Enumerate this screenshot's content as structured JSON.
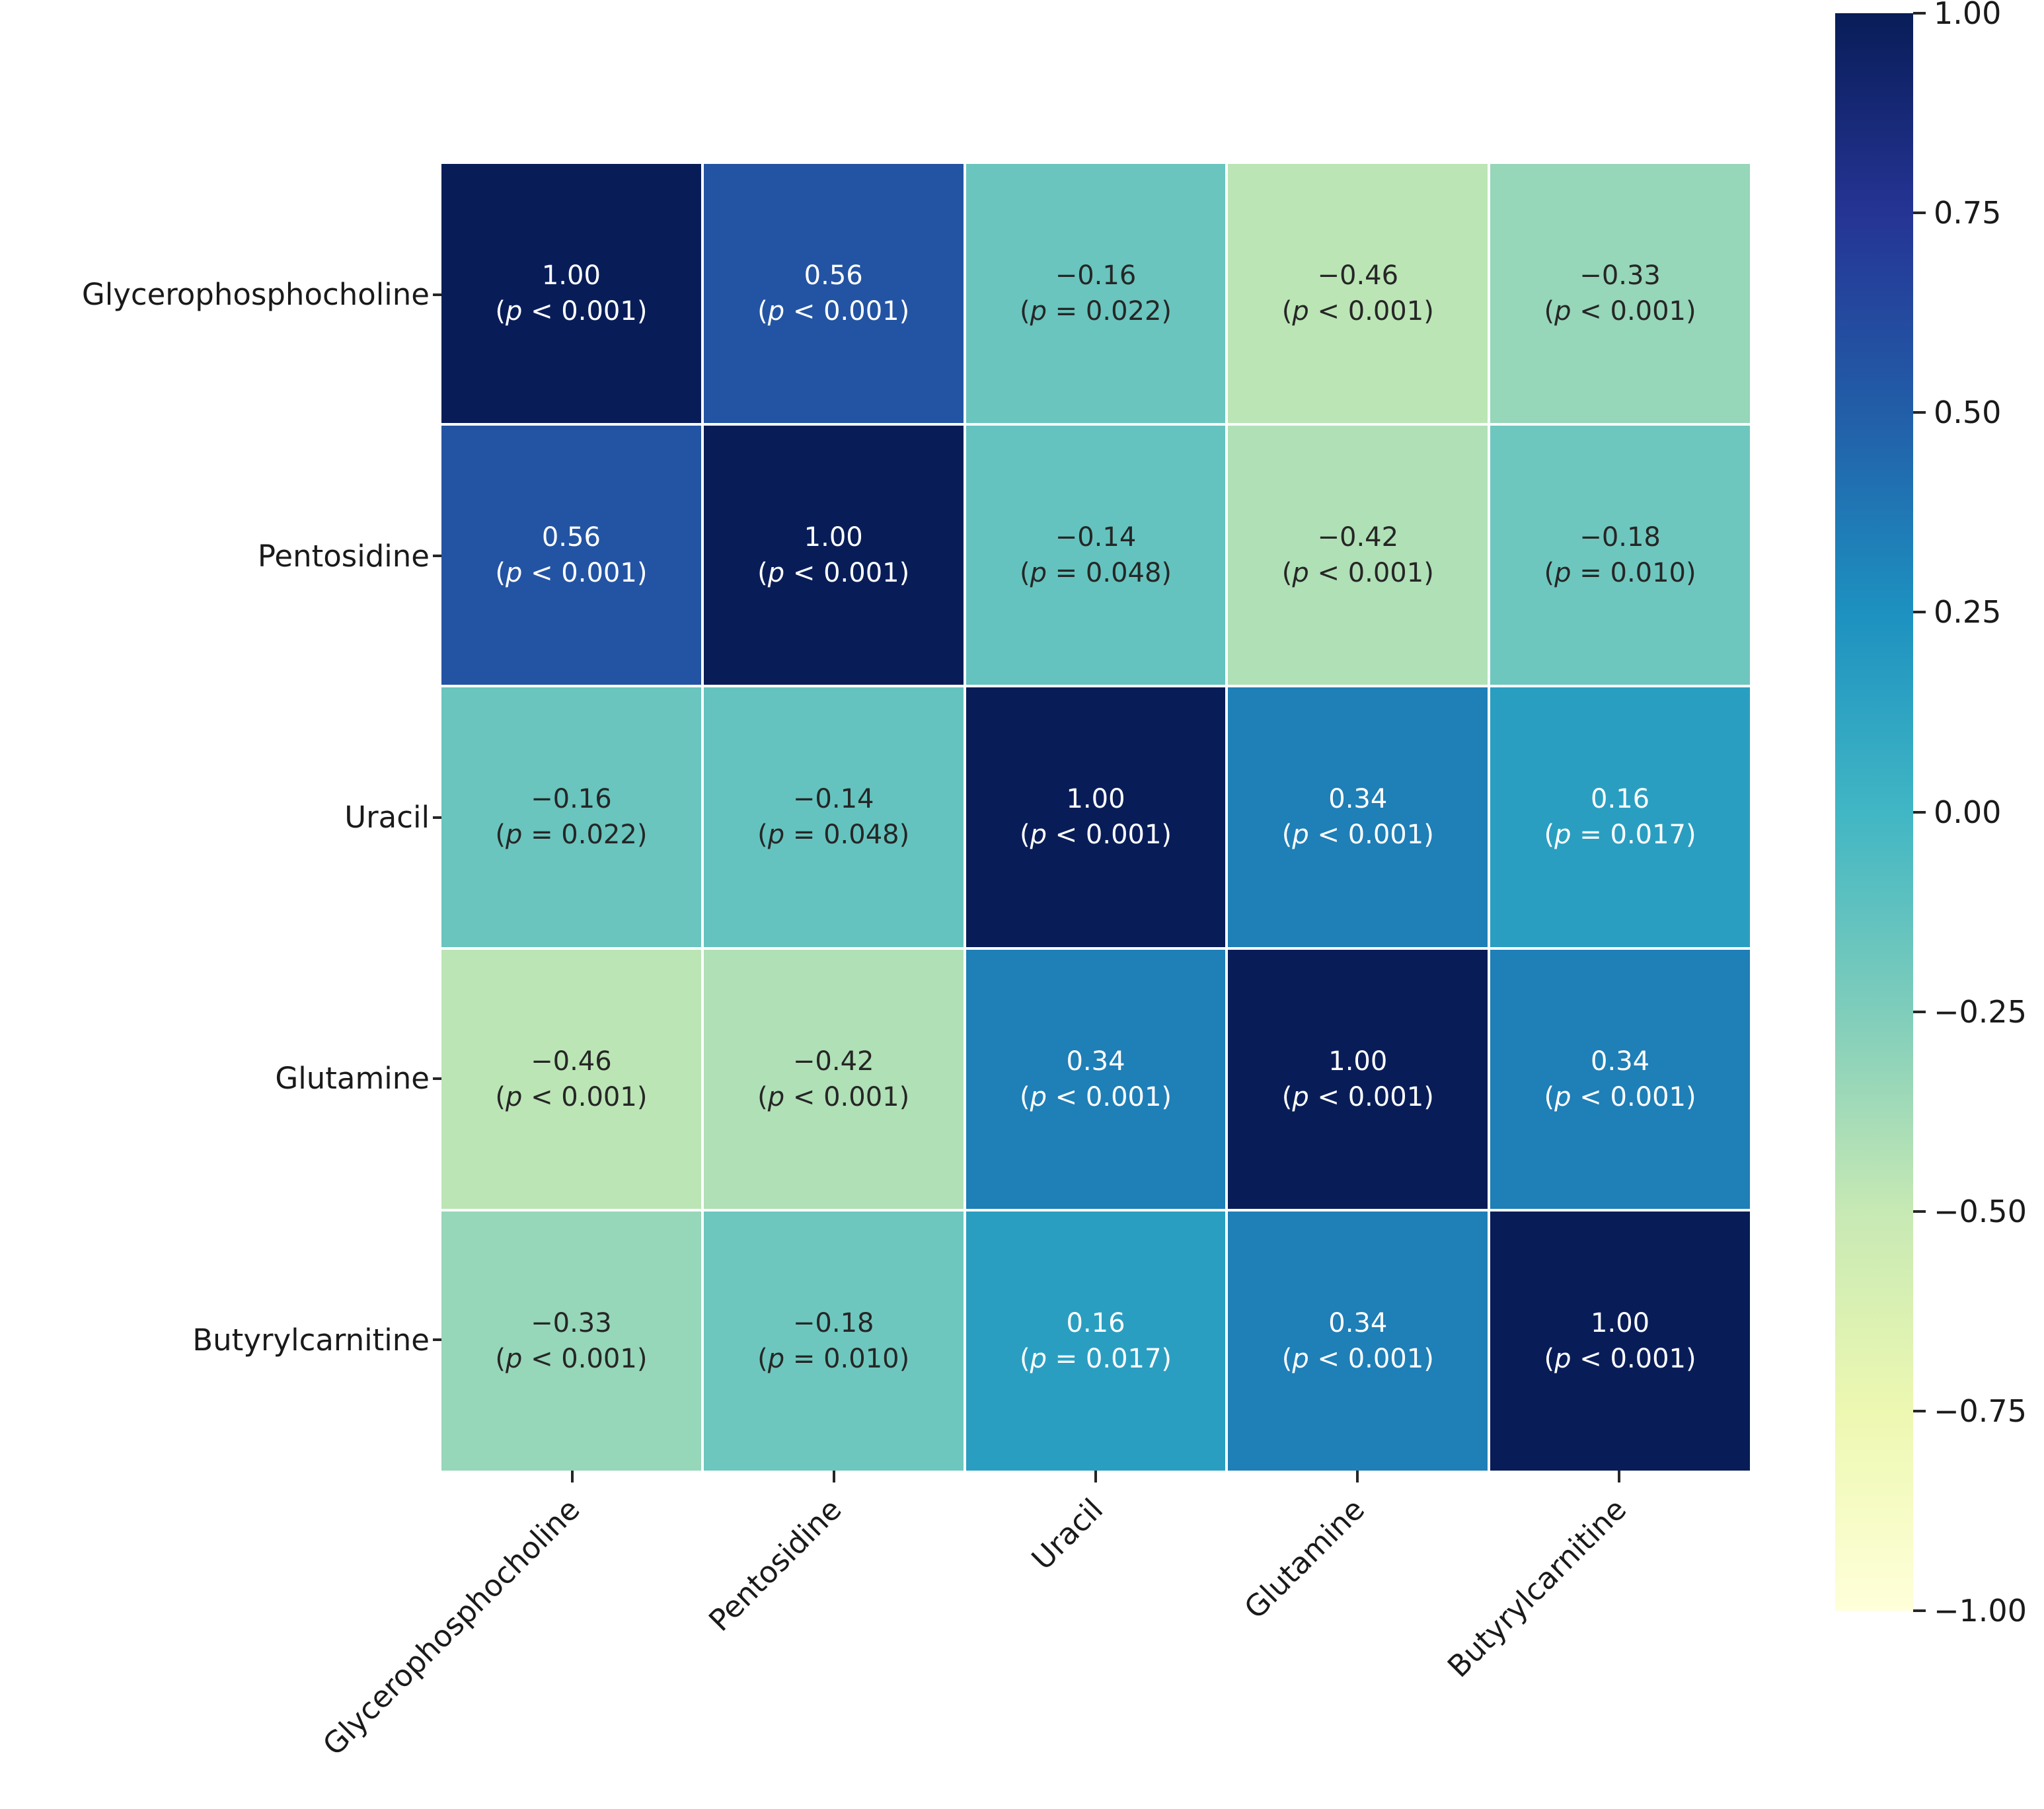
{
  "figure": {
    "background": "#ffffff",
    "text_color_dark": "#262626",
    "text_color_light": "#ffffff"
  },
  "chart_data": {
    "type": "heatmap",
    "title": "",
    "xlabel": "",
    "ylabel": "",
    "categories": [
      "Glycerophosphocholine",
      "Pentosidine",
      "Uracil",
      "Glutamine",
      "Butyrylcarnitine"
    ],
    "vmin": -1,
    "vmax": 1,
    "grid": false,
    "annotation_note": "each cell shows correlation r and p-value",
    "cells": [
      [
        {
          "r": 1.0,
          "r_text": "1.00",
          "p": "p < 0.001"
        },
        {
          "r": 0.56,
          "r_text": "0.56",
          "p": "p < 0.001"
        },
        {
          "r": -0.16,
          "r_text": "−0.16",
          "p": "p = 0.022"
        },
        {
          "r": -0.46,
          "r_text": "−0.46",
          "p": "p < 0.001"
        },
        {
          "r": -0.33,
          "r_text": "−0.33",
          "p": "p < 0.001"
        }
      ],
      [
        {
          "r": 0.56,
          "r_text": "0.56",
          "p": "p < 0.001"
        },
        {
          "r": 1.0,
          "r_text": "1.00",
          "p": "p < 0.001"
        },
        {
          "r": -0.14,
          "r_text": "−0.14",
          "p": "p = 0.048"
        },
        {
          "r": -0.42,
          "r_text": "−0.42",
          "p": "p < 0.001"
        },
        {
          "r": -0.18,
          "r_text": "−0.18",
          "p": "p = 0.010"
        }
      ],
      [
        {
          "r": -0.16,
          "r_text": "−0.16",
          "p": "p = 0.022"
        },
        {
          "r": -0.14,
          "r_text": "−0.14",
          "p": "p = 0.048"
        },
        {
          "r": 1.0,
          "r_text": "1.00",
          "p": "p < 0.001"
        },
        {
          "r": 0.34,
          "r_text": "0.34",
          "p": "p < 0.001"
        },
        {
          "r": 0.16,
          "r_text": "0.16",
          "p": "p = 0.017"
        }
      ],
      [
        {
          "r": -0.46,
          "r_text": "−0.46",
          "p": "p < 0.001"
        },
        {
          "r": -0.42,
          "r_text": "−0.42",
          "p": "p < 0.001"
        },
        {
          "r": 0.34,
          "r_text": "0.34",
          "p": "p < 0.001"
        },
        {
          "r": 1.0,
          "r_text": "1.00",
          "p": "p < 0.001"
        },
        {
          "r": 0.34,
          "r_text": "0.34",
          "p": "p < 0.001"
        }
      ],
      [
        {
          "r": -0.33,
          "r_text": "−0.33",
          "p": "p < 0.001"
        },
        {
          "r": -0.18,
          "r_text": "−0.18",
          "p": "p = 0.010"
        },
        {
          "r": 0.16,
          "r_text": "0.16",
          "p": "p = 0.017"
        },
        {
          "r": 0.34,
          "r_text": "0.34",
          "p": "p < 0.001"
        },
        {
          "r": 1.0,
          "r_text": "1.00",
          "p": "p < 0.001"
        }
      ]
    ],
    "colorbar": {
      "position": "right",
      "tick_labels": [
        "1.00",
        "0.75",
        "0.50",
        "0.25",
        "0.00",
        "−0.25",
        "−0.50",
        "−0.75",
        "−1.00"
      ],
      "tick_values": [
        1.0,
        0.75,
        0.5,
        0.25,
        0.0,
        -0.25,
        -0.5,
        -0.75,
        -1.0
      ],
      "colormap_stops": [
        "#ffffd9",
        "#edf8b1",
        "#c7e9b4",
        "#7fcdbb",
        "#41b6c4",
        "#1d91c0",
        "#225ea8",
        "#253494",
        "#081d58"
      ]
    }
  }
}
